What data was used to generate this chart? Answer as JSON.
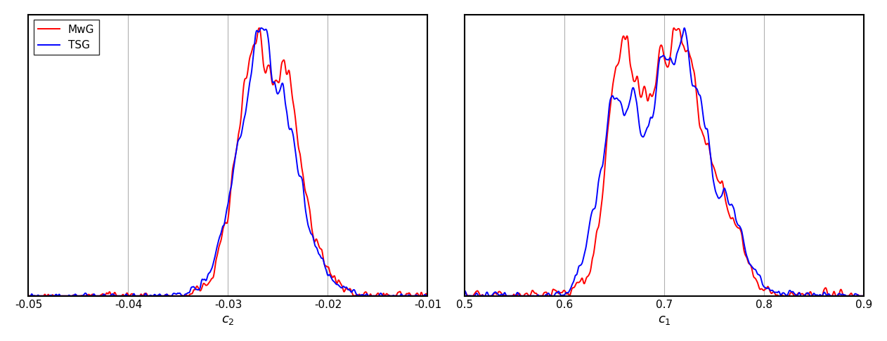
{
  "left_xlabel": "$c_2$",
  "right_xlabel": "$c_1$",
  "left_xlim": [
    -0.05,
    -0.01
  ],
  "right_xlim": [
    0.5,
    0.9
  ],
  "left_xticks": [
    -0.05,
    -0.04,
    -0.03,
    -0.02,
    -0.01
  ],
  "right_xticks": [
    0.5,
    0.6,
    0.7,
    0.8,
    0.9
  ],
  "red_color": "#ff0000",
  "blue_color": "#0000ff",
  "legend_labels": [
    "MwG",
    "TSG"
  ],
  "background_color": "#ffffff",
  "grid_color": "#b0b0b0",
  "linewidth": 1.4,
  "xlabel_fontsize": 13,
  "legend_fontsize": 11,
  "tick_fontsize": 11
}
